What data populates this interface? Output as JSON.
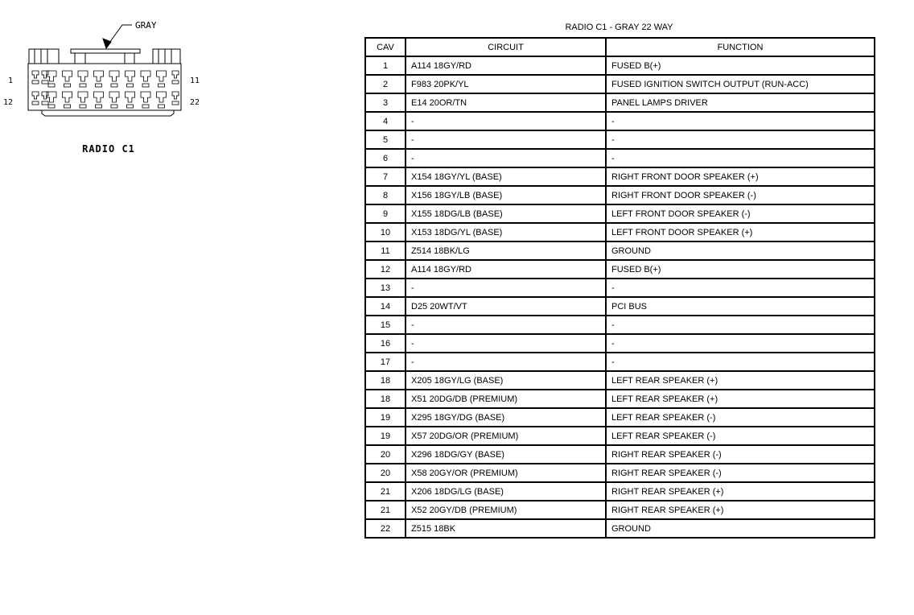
{
  "connector": {
    "color_callout": "GRAY",
    "title": "RADIO C1",
    "pin_labels": {
      "top_left": "1",
      "top_right": "11",
      "bottom_left": "12",
      "bottom_right": "22"
    }
  },
  "table": {
    "title": "RADIO C1 - GRAY 22 WAY",
    "headers": [
      "CAV",
      "CIRCUIT",
      "FUNCTION"
    ],
    "rows": [
      [
        "1",
        "A114 18GY/RD",
        "FUSED B(+)"
      ],
      [
        "2",
        "F983 20PK/YL",
        "FUSED IGNITION SWITCH OUTPUT (RUN-ACC)"
      ],
      [
        "3",
        "E14 20OR/TN",
        "PANEL LAMPS DRIVER"
      ],
      [
        "4",
        "-",
        "-"
      ],
      [
        "5",
        "-",
        "-"
      ],
      [
        "6",
        "-",
        "-"
      ],
      [
        "7",
        "X154 18GY/YL (BASE)",
        "RIGHT FRONT DOOR SPEAKER (+)"
      ],
      [
        "8",
        "X156 18GY/LB (BASE)",
        "RIGHT FRONT DOOR SPEAKER (-)"
      ],
      [
        "9",
        "X155 18DG/LB (BASE)",
        "LEFT FRONT DOOR SPEAKER (-)"
      ],
      [
        "10",
        "X153 18DG/YL (BASE)",
        "LEFT FRONT DOOR SPEAKER (+)"
      ],
      [
        "11",
        "Z514 18BK/LG",
        "GROUND"
      ],
      [
        "12",
        "A114 18GY/RD",
        "FUSED B(+)"
      ],
      [
        "13",
        "-",
        "-"
      ],
      [
        "14",
        "D25 20WT/VT",
        "PCI BUS"
      ],
      [
        "15",
        "-",
        "-"
      ],
      [
        "16",
        "-",
        "-"
      ],
      [
        "17",
        "-",
        "-"
      ],
      [
        "18",
        "X205 18GY/LG (BASE)",
        "LEFT REAR SPEAKER (+)"
      ],
      [
        "18",
        "X51 20DG/DB (PREMIUM)",
        "LEFT REAR SPEAKER (+)"
      ],
      [
        "19",
        "X295 18GY/DG (BASE)",
        "LEFT REAR SPEAKER (-)"
      ],
      [
        "19",
        "X57 20DG/OR (PREMIUM)",
        "LEFT REAR SPEAKER (-)"
      ],
      [
        "20",
        "X296 18DG/GY (BASE)",
        "RIGHT REAR SPEAKER (-)"
      ],
      [
        "20",
        "X58 20GY/OR (PREMIUM)",
        "RIGHT REAR SPEAKER (-)"
      ],
      [
        "21",
        "X206 18DG/LG (BASE)",
        "RIGHT REAR SPEAKER (+)"
      ],
      [
        "21",
        "X52 20GY/DB (PREMIUM)",
        "RIGHT REAR SPEAKER (+)"
      ],
      [
        "22",
        "Z515 18BK",
        "GROUND"
      ]
    ]
  }
}
